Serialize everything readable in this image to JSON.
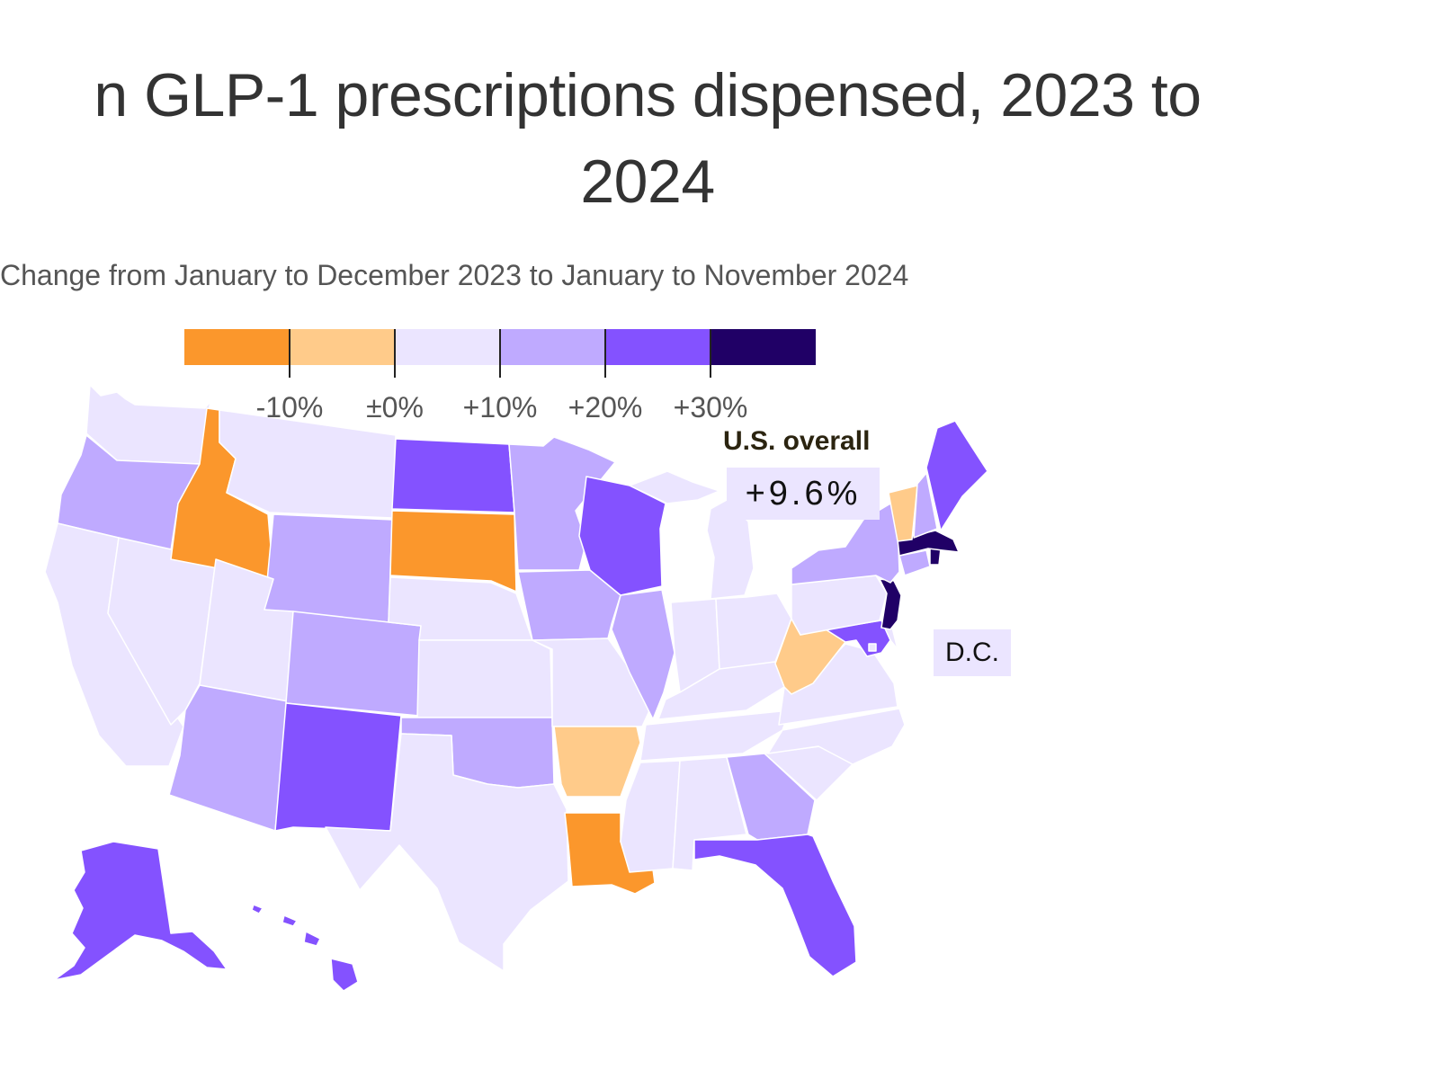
{
  "title_line1": "n GLP-1 prescriptions dispensed, 2023 to",
  "title_line2": "2024",
  "subtitle": "Change from January to December 2023 to January to November 2024",
  "colors": {
    "bin1": "#fb972c",
    "bin2": "#ffcb8a",
    "bin3": "#ebe5ff",
    "bin4": "#bfaaff",
    "bin5": "#8452ff",
    "bin6": "#200066"
  },
  "legend": {
    "tick_labels": [
      "-10%",
      "±0%",
      "+10%",
      "+20%",
      "+30%"
    ]
  },
  "us_overall": {
    "label": "U.S. overall",
    "value": "+9.6%"
  },
  "dc_label": "D.C.",
  "chart_data": {
    "type": "choropleth",
    "bins": [
      {
        "bin": 1,
        "range": "below -10%"
      },
      {
        "bin": 2,
        "range": "-10% to ±0%"
      },
      {
        "bin": 3,
        "range": "±0% to +10%"
      },
      {
        "bin": 4,
        "range": "+10% to +20%"
      },
      {
        "bin": 5,
        "range": "+20% to +30%"
      },
      {
        "bin": 6,
        "range": "above +30%"
      }
    ],
    "states": {
      "WA": 3,
      "OR": 4,
      "CA": 3,
      "NV": 3,
      "ID": 1,
      "MT": 3,
      "WY": 4,
      "UT": 3,
      "AZ": 4,
      "CO": 4,
      "NM": 5,
      "ND": 5,
      "SD": 1,
      "NE": 3,
      "KS": 3,
      "OK": 4,
      "TX": 3,
      "MN": 4,
      "IA": 4,
      "MO": 3,
      "AR": 2,
      "LA": 1,
      "WI": 5,
      "IL": 4,
      "MI": 3,
      "IN": 3,
      "OH": 3,
      "KY": 3,
      "TN": 3,
      "MS": 3,
      "AL": 3,
      "GA": 4,
      "FL": 5,
      "SC": 3,
      "NC": 3,
      "VA": 3,
      "WV": 2,
      "PA": 3,
      "NY": 4,
      "VT": 2,
      "NH": 4,
      "ME": 5,
      "MA": 6,
      "RI": 6,
      "CT": 4,
      "NJ": 6,
      "DE": 3,
      "MD": 5,
      "DC": 3,
      "AK": 5,
      "HI": 5
    },
    "us_overall": 9.6
  }
}
